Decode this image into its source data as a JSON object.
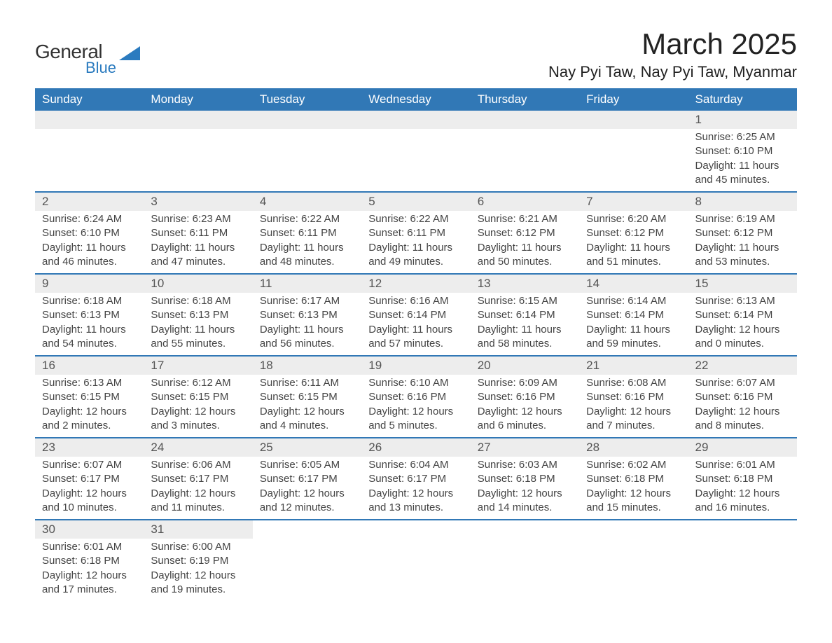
{
  "logo": {
    "line1": "General",
    "line2": "Blue",
    "text_color": "#333333",
    "blue_color": "#2b7bbf",
    "triangle_color": "#2b7bbf"
  },
  "title": "March 2025",
  "location": "Nay Pyi Taw, Nay Pyi Taw, Myanmar",
  "colors": {
    "header_bg": "#3178b6",
    "header_text": "#ffffff",
    "daynum_bg": "#ededed",
    "text": "#444444",
    "week_divider": "#3178b6",
    "page_bg": "#ffffff"
  },
  "daysOfWeek": [
    "Sunday",
    "Monday",
    "Tuesday",
    "Wednesday",
    "Thursday",
    "Friday",
    "Saturday"
  ],
  "weeks": [
    [
      null,
      null,
      null,
      null,
      null,
      null,
      {
        "num": "1",
        "sunrise": "Sunrise: 6:25 AM",
        "sunset": "Sunset: 6:10 PM",
        "daylight1": "Daylight: 11 hours",
        "daylight2": "and 45 minutes."
      }
    ],
    [
      {
        "num": "2",
        "sunrise": "Sunrise: 6:24 AM",
        "sunset": "Sunset: 6:10 PM",
        "daylight1": "Daylight: 11 hours",
        "daylight2": "and 46 minutes."
      },
      {
        "num": "3",
        "sunrise": "Sunrise: 6:23 AM",
        "sunset": "Sunset: 6:11 PM",
        "daylight1": "Daylight: 11 hours",
        "daylight2": "and 47 minutes."
      },
      {
        "num": "4",
        "sunrise": "Sunrise: 6:22 AM",
        "sunset": "Sunset: 6:11 PM",
        "daylight1": "Daylight: 11 hours",
        "daylight2": "and 48 minutes."
      },
      {
        "num": "5",
        "sunrise": "Sunrise: 6:22 AM",
        "sunset": "Sunset: 6:11 PM",
        "daylight1": "Daylight: 11 hours",
        "daylight2": "and 49 minutes."
      },
      {
        "num": "6",
        "sunrise": "Sunrise: 6:21 AM",
        "sunset": "Sunset: 6:12 PM",
        "daylight1": "Daylight: 11 hours",
        "daylight2": "and 50 minutes."
      },
      {
        "num": "7",
        "sunrise": "Sunrise: 6:20 AM",
        "sunset": "Sunset: 6:12 PM",
        "daylight1": "Daylight: 11 hours",
        "daylight2": "and 51 minutes."
      },
      {
        "num": "8",
        "sunrise": "Sunrise: 6:19 AM",
        "sunset": "Sunset: 6:12 PM",
        "daylight1": "Daylight: 11 hours",
        "daylight2": "and 53 minutes."
      }
    ],
    [
      {
        "num": "9",
        "sunrise": "Sunrise: 6:18 AM",
        "sunset": "Sunset: 6:13 PM",
        "daylight1": "Daylight: 11 hours",
        "daylight2": "and 54 minutes."
      },
      {
        "num": "10",
        "sunrise": "Sunrise: 6:18 AM",
        "sunset": "Sunset: 6:13 PM",
        "daylight1": "Daylight: 11 hours",
        "daylight2": "and 55 minutes."
      },
      {
        "num": "11",
        "sunrise": "Sunrise: 6:17 AM",
        "sunset": "Sunset: 6:13 PM",
        "daylight1": "Daylight: 11 hours",
        "daylight2": "and 56 minutes."
      },
      {
        "num": "12",
        "sunrise": "Sunrise: 6:16 AM",
        "sunset": "Sunset: 6:14 PM",
        "daylight1": "Daylight: 11 hours",
        "daylight2": "and 57 minutes."
      },
      {
        "num": "13",
        "sunrise": "Sunrise: 6:15 AM",
        "sunset": "Sunset: 6:14 PM",
        "daylight1": "Daylight: 11 hours",
        "daylight2": "and 58 minutes."
      },
      {
        "num": "14",
        "sunrise": "Sunrise: 6:14 AM",
        "sunset": "Sunset: 6:14 PM",
        "daylight1": "Daylight: 11 hours",
        "daylight2": "and 59 minutes."
      },
      {
        "num": "15",
        "sunrise": "Sunrise: 6:13 AM",
        "sunset": "Sunset: 6:14 PM",
        "daylight1": "Daylight: 12 hours",
        "daylight2": "and 0 minutes."
      }
    ],
    [
      {
        "num": "16",
        "sunrise": "Sunrise: 6:13 AM",
        "sunset": "Sunset: 6:15 PM",
        "daylight1": "Daylight: 12 hours",
        "daylight2": "and 2 minutes."
      },
      {
        "num": "17",
        "sunrise": "Sunrise: 6:12 AM",
        "sunset": "Sunset: 6:15 PM",
        "daylight1": "Daylight: 12 hours",
        "daylight2": "and 3 minutes."
      },
      {
        "num": "18",
        "sunrise": "Sunrise: 6:11 AM",
        "sunset": "Sunset: 6:15 PM",
        "daylight1": "Daylight: 12 hours",
        "daylight2": "and 4 minutes."
      },
      {
        "num": "19",
        "sunrise": "Sunrise: 6:10 AM",
        "sunset": "Sunset: 6:16 PM",
        "daylight1": "Daylight: 12 hours",
        "daylight2": "and 5 minutes."
      },
      {
        "num": "20",
        "sunrise": "Sunrise: 6:09 AM",
        "sunset": "Sunset: 6:16 PM",
        "daylight1": "Daylight: 12 hours",
        "daylight2": "and 6 minutes."
      },
      {
        "num": "21",
        "sunrise": "Sunrise: 6:08 AM",
        "sunset": "Sunset: 6:16 PM",
        "daylight1": "Daylight: 12 hours",
        "daylight2": "and 7 minutes."
      },
      {
        "num": "22",
        "sunrise": "Sunrise: 6:07 AM",
        "sunset": "Sunset: 6:16 PM",
        "daylight1": "Daylight: 12 hours",
        "daylight2": "and 8 minutes."
      }
    ],
    [
      {
        "num": "23",
        "sunrise": "Sunrise: 6:07 AM",
        "sunset": "Sunset: 6:17 PM",
        "daylight1": "Daylight: 12 hours",
        "daylight2": "and 10 minutes."
      },
      {
        "num": "24",
        "sunrise": "Sunrise: 6:06 AM",
        "sunset": "Sunset: 6:17 PM",
        "daylight1": "Daylight: 12 hours",
        "daylight2": "and 11 minutes."
      },
      {
        "num": "25",
        "sunrise": "Sunrise: 6:05 AM",
        "sunset": "Sunset: 6:17 PM",
        "daylight1": "Daylight: 12 hours",
        "daylight2": "and 12 minutes."
      },
      {
        "num": "26",
        "sunrise": "Sunrise: 6:04 AM",
        "sunset": "Sunset: 6:17 PM",
        "daylight1": "Daylight: 12 hours",
        "daylight2": "and 13 minutes."
      },
      {
        "num": "27",
        "sunrise": "Sunrise: 6:03 AM",
        "sunset": "Sunset: 6:18 PM",
        "daylight1": "Daylight: 12 hours",
        "daylight2": "and 14 minutes."
      },
      {
        "num": "28",
        "sunrise": "Sunrise: 6:02 AM",
        "sunset": "Sunset: 6:18 PM",
        "daylight1": "Daylight: 12 hours",
        "daylight2": "and 15 minutes."
      },
      {
        "num": "29",
        "sunrise": "Sunrise: 6:01 AM",
        "sunset": "Sunset: 6:18 PM",
        "daylight1": "Daylight: 12 hours",
        "daylight2": "and 16 minutes."
      }
    ],
    [
      {
        "num": "30",
        "sunrise": "Sunrise: 6:01 AM",
        "sunset": "Sunset: 6:18 PM",
        "daylight1": "Daylight: 12 hours",
        "daylight2": "and 17 minutes."
      },
      {
        "num": "31",
        "sunrise": "Sunrise: 6:00 AM",
        "sunset": "Sunset: 6:19 PM",
        "daylight1": "Daylight: 12 hours",
        "daylight2": "and 19 minutes."
      },
      null,
      null,
      null,
      null,
      null
    ]
  ]
}
